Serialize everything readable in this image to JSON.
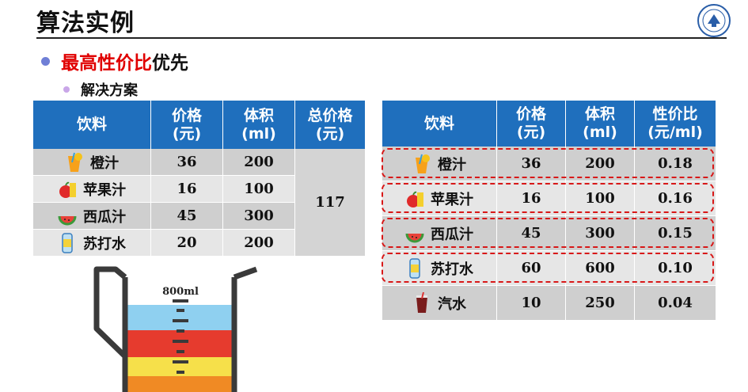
{
  "slide": {
    "title": "算法实例",
    "bullet_emphasis": "最高性价比",
    "bullet_rest": "优先",
    "sub_bullet": "解决方案"
  },
  "colors": {
    "header": "#1f6fbd",
    "emphasis": "#e00000",
    "highlight_border": "#d81818"
  },
  "table_left": {
    "headers": [
      "饮料",
      "价格\n(元)",
      "体积\n(ml)",
      "总价格\n(元)"
    ],
    "rows": [
      {
        "name": "橙汁",
        "price": "36",
        "volume": "200",
        "icon": "orange-juice-icon"
      },
      {
        "name": "苹果汁",
        "price": "16",
        "volume": "100",
        "icon": "apple-juice-icon"
      },
      {
        "name": "西瓜汁",
        "price": "45",
        "volume": "300",
        "icon": "watermelon-juice-icon"
      },
      {
        "name": "苏打水",
        "price": "20",
        "volume": "200",
        "icon": "soda-water-icon"
      }
    ],
    "total": "117"
  },
  "table_right": {
    "headers": [
      "饮料",
      "价格\n(元)",
      "体积\n(ml)",
      "性价比\n(元/ml)"
    ],
    "rows": [
      {
        "name": "橙汁",
        "price": "36",
        "volume": "200",
        "ratio": "0.18",
        "icon": "orange-juice-icon"
      },
      {
        "name": "苹果汁",
        "price": "16",
        "volume": "100",
        "ratio": "0.16",
        "icon": "apple-juice-icon"
      },
      {
        "name": "西瓜汁",
        "price": "45",
        "volume": "300",
        "ratio": "0.15",
        "icon": "watermelon-juice-icon"
      },
      {
        "name": "苏打水",
        "price": "60",
        "volume": "600",
        "ratio": "0.10",
        "icon": "soda-water-icon"
      },
      {
        "name": "汽水",
        "price": "10",
        "volume": "250",
        "ratio": "0.04",
        "icon": "cola-icon"
      }
    ]
  },
  "jug": {
    "capacity_label": "800ml",
    "layers": [
      "#8fd0f0",
      "#e63b2e",
      "#f6e04a",
      "#f08a24"
    ]
  }
}
